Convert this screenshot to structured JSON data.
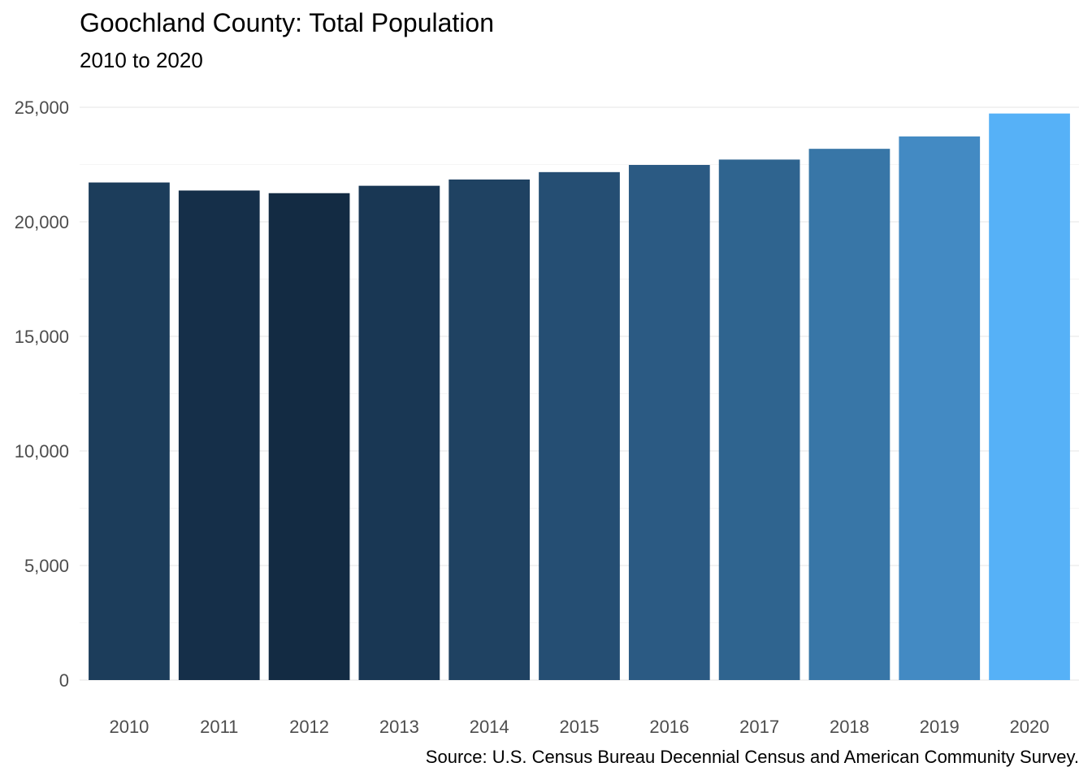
{
  "chart_data": {
    "type": "bar",
    "title": "Goochland County: Total Population",
    "subtitle": "2010 to 2020",
    "caption": "Source: U.S. Census Bureau Decennial Census and American Community Survey.",
    "xlabel": "",
    "ylabel": "",
    "categories": [
      "2010",
      "2011",
      "2012",
      "2013",
      "2014",
      "2015",
      "2016",
      "2017",
      "2018",
      "2019",
      "2020"
    ],
    "values": [
      21717,
      21366,
      21250,
      21573,
      21847,
      22169,
      22482,
      22717,
      23186,
      23726,
      24727
    ],
    "ylim": [
      0,
      25000
    ],
    "yticks": [
      0,
      5000,
      10000,
      15000,
      20000,
      25000
    ],
    "ytick_labels": [
      "0",
      "5,000",
      "10,000",
      "15,000",
      "20,000",
      "25,000"
    ],
    "grid": "horizontal",
    "legend": "none",
    "colors": {
      "low": "#132b43",
      "high": "#56b1f7",
      "grid": "#ebebeb"
    }
  }
}
